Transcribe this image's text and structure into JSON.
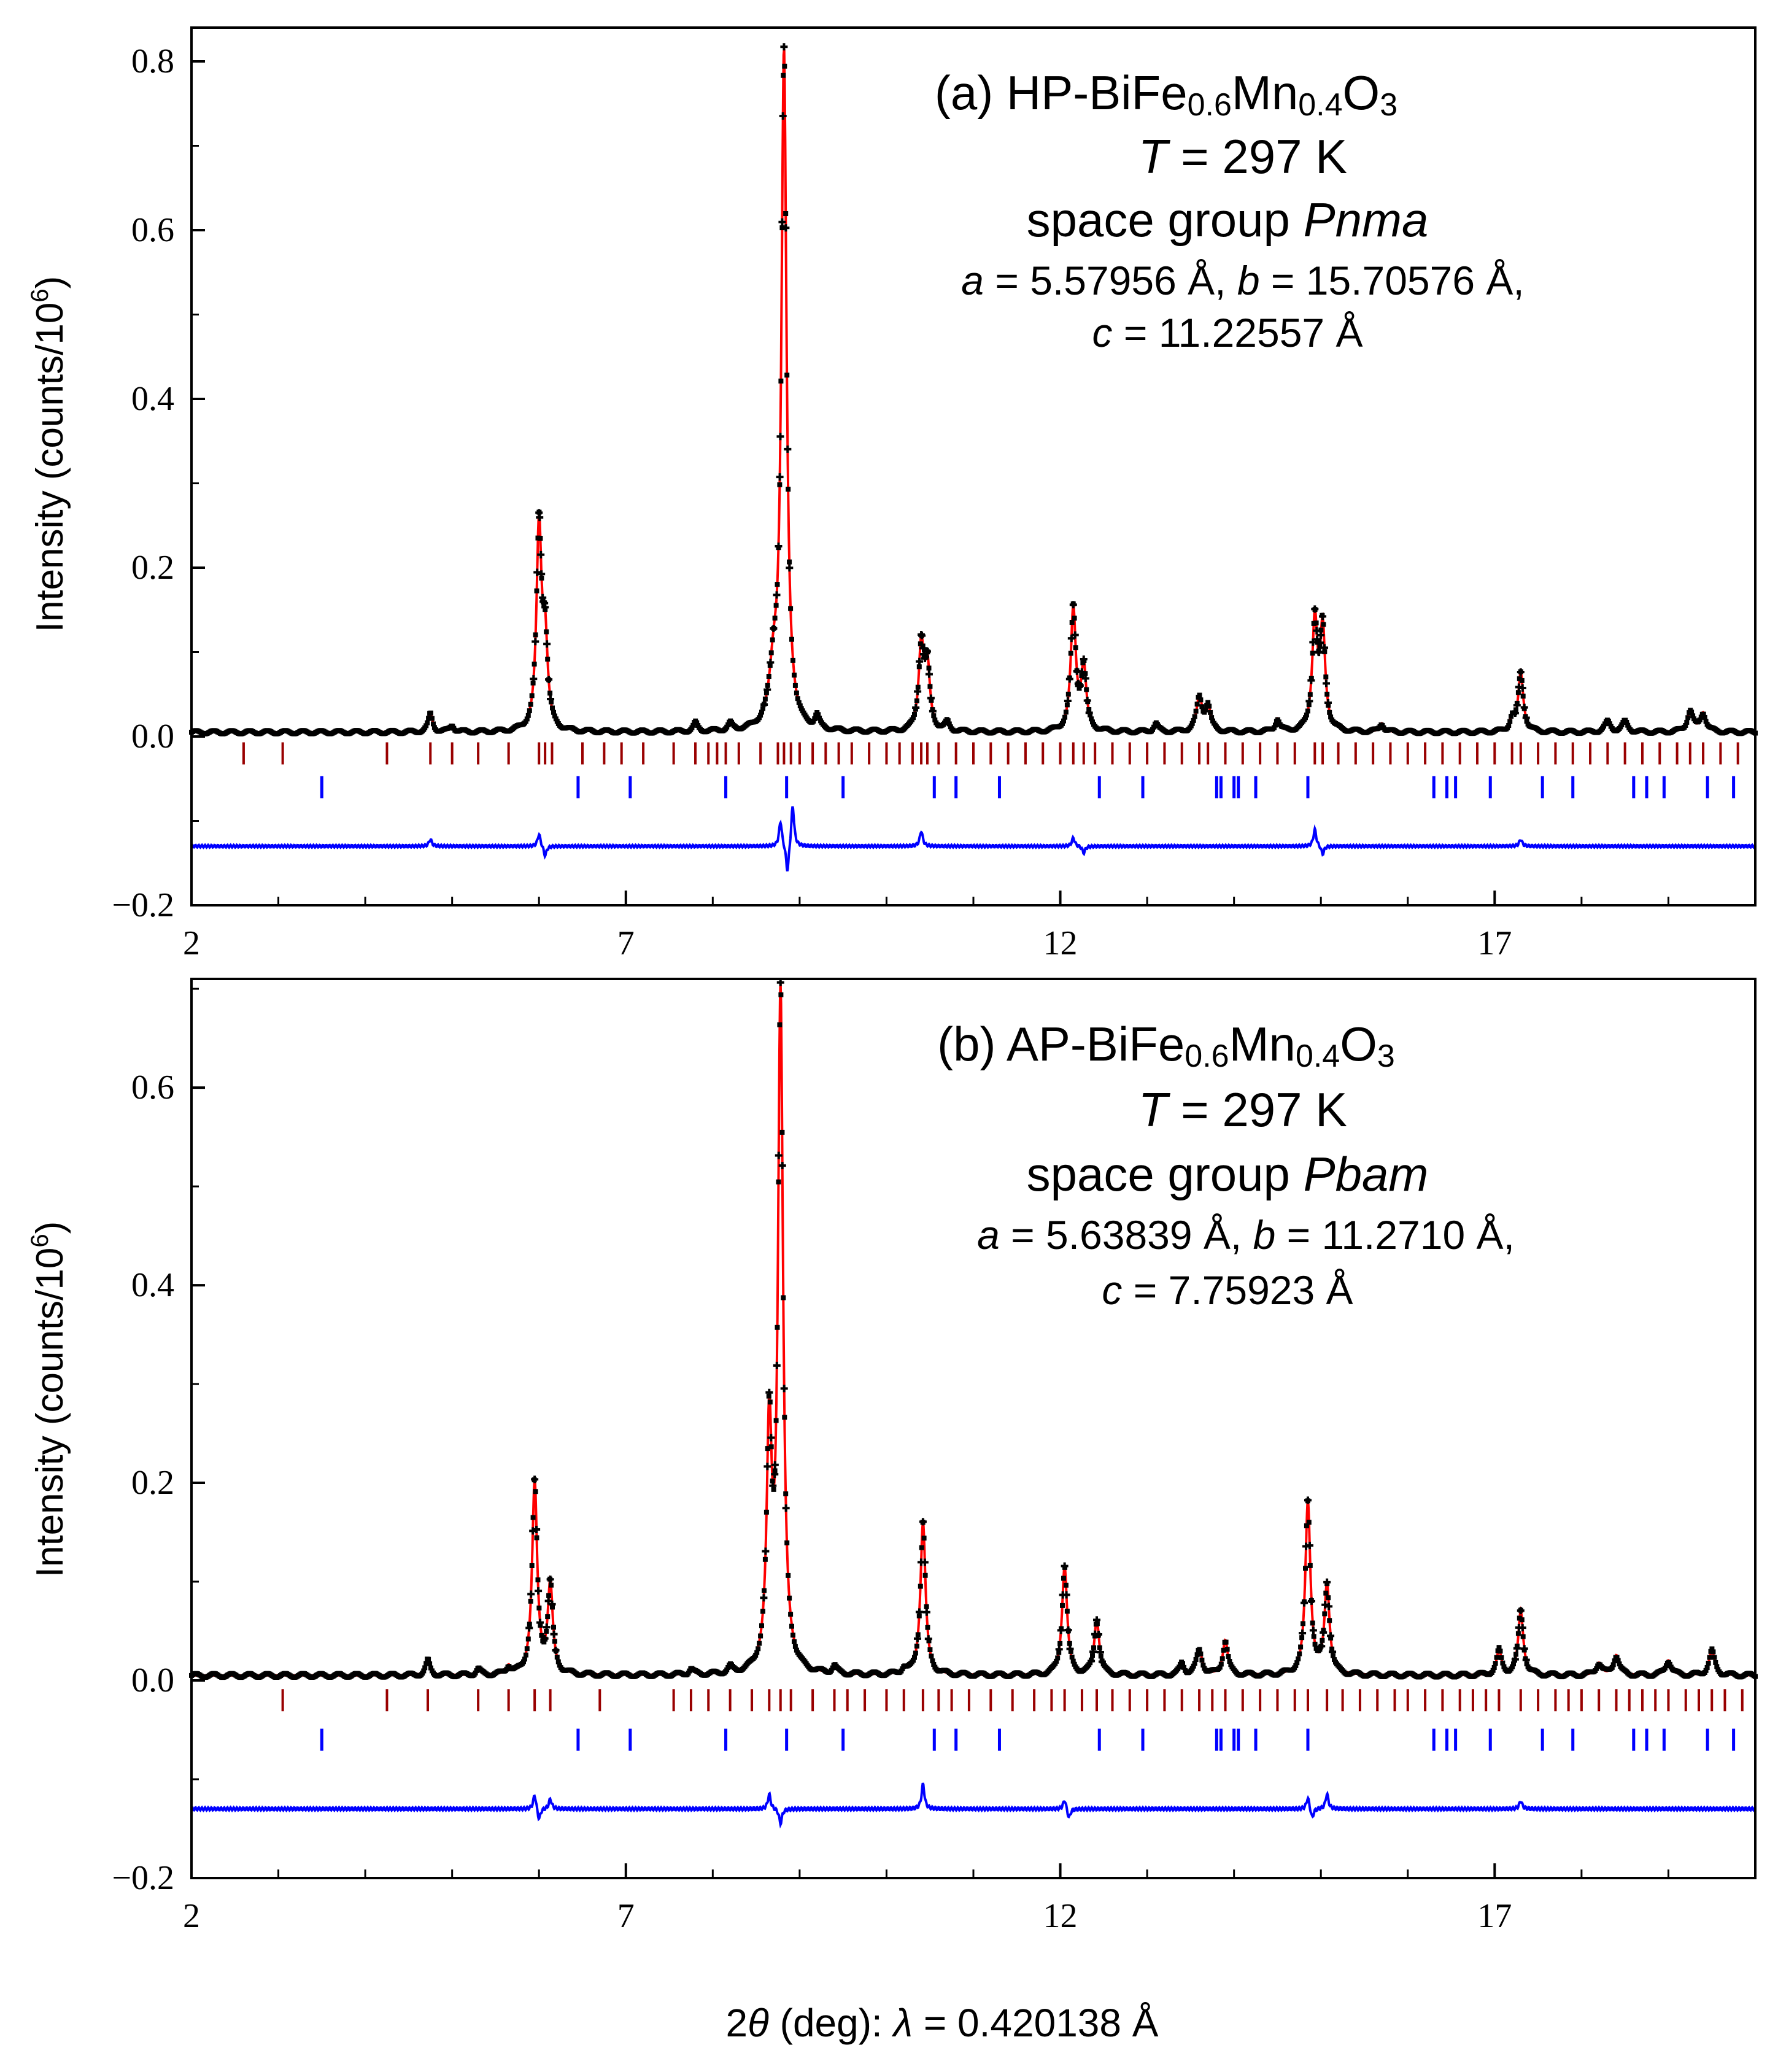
{
  "figure": {
    "xlabel_prefix": "2",
    "xlabel_theta": "θ",
    "xlabel_mid": " (deg): ",
    "xlabel_lambda": "λ",
    "xlabel_value": " = 0.420138 Å"
  },
  "colors": {
    "observed": "#000000",
    "calculated": "#ff0000",
    "difference": "#0000ff",
    "main_phase_ticks": "#990000",
    "impurity_ticks": "#0000ff"
  },
  "chart_data": [
    {
      "type": "line",
      "panel": "a",
      "title_prefix": "(a) HP-BiFe",
      "sub1": "0.6",
      "title_mid": "Mn",
      "sub2": "0.4",
      "title_end": "O",
      "sub3": "3",
      "temperature_var": "T",
      "temperature": " = 297 K",
      "space_group_prefix": "space group ",
      "space_group": "Pnma",
      "lattice": {
        "a_var": "a",
        "a": " = 5.57956 Å, ",
        "b_var": "b",
        "b": " = 15.70576 Å,",
        "c_var": "c",
        "c": " = 11.22557 Å"
      },
      "ylabel_text": "Intensity (counts/10",
      "ylabel_sup": "6",
      "ylabel_close": ")",
      "xlim": [
        2,
        20
      ],
      "ylim": [
        -0.2,
        0.84
      ],
      "xticks": [
        2,
        7,
        12,
        17
      ],
      "xtick_labels": [
        "2",
        "7",
        "12",
        "17"
      ],
      "yticks": [
        -0.2,
        0.0,
        0.2,
        0.4,
        0.6,
        0.8
      ],
      "ytick_labels": [
        "−0.2",
        "0.0",
        "0.2",
        "0.4",
        "0.6",
        "0.8"
      ],
      "background": 0.005,
      "difference_offset": -0.13,
      "main_tick_y": -0.02,
      "impurity_tick_y": -0.06,
      "peaks": [
        {
          "x": 4.75,
          "h": 0.022,
          "w": 0.03
        },
        {
          "x": 5.0,
          "h": 0.008,
          "w": 0.03
        },
        {
          "x": 6.0,
          "h": 0.24,
          "w": 0.035
        },
        {
          "x": 6.07,
          "h": 0.1,
          "w": 0.035
        },
        {
          "x": 7.8,
          "h": 0.01,
          "w": 0.03
        },
        {
          "x": 8.2,
          "h": 0.008,
          "w": 0.03
        },
        {
          "x": 8.7,
          "h": 0.06,
          "w": 0.06
        },
        {
          "x": 8.82,
          "h": 0.8,
          "w": 0.035
        },
        {
          "x": 9.2,
          "h": 0.015,
          "w": 0.03
        },
        {
          "x": 10.4,
          "h": 0.1,
          "w": 0.035
        },
        {
          "x": 10.47,
          "h": 0.075,
          "w": 0.035
        },
        {
          "x": 10.7,
          "h": 0.01,
          "w": 0.03
        },
        {
          "x": 12.15,
          "h": 0.145,
          "w": 0.035
        },
        {
          "x": 12.27,
          "h": 0.075,
          "w": 0.035
        },
        {
          "x": 13.1,
          "h": 0.01,
          "w": 0.03
        },
        {
          "x": 13.6,
          "h": 0.04,
          "w": 0.04
        },
        {
          "x": 13.7,
          "h": 0.03,
          "w": 0.035
        },
        {
          "x": 14.5,
          "h": 0.015,
          "w": 0.03
        },
        {
          "x": 14.93,
          "h": 0.13,
          "w": 0.035
        },
        {
          "x": 15.02,
          "h": 0.12,
          "w": 0.035
        },
        {
          "x": 15.7,
          "h": 0.01,
          "w": 0.03
        },
        {
          "x": 17.3,
          "h": 0.07,
          "w": 0.035
        },
        {
          "x": 17.2,
          "h": 0.015,
          "w": 0.03
        },
        {
          "x": 18.3,
          "h": 0.012,
          "w": 0.04
        },
        {
          "x": 18.5,
          "h": 0.012,
          "w": 0.04
        },
        {
          "x": 19.25,
          "h": 0.025,
          "w": 0.04
        },
        {
          "x": 19.4,
          "h": 0.022,
          "w": 0.04
        }
      ],
      "main_ticks": [
        2.6,
        3.05,
        4.25,
        4.75,
        5.0,
        5.3,
        5.65,
        6.0,
        6.07,
        6.15,
        6.5,
        6.75,
        6.95,
        7.2,
        7.55,
        7.8,
        7.95,
        8.05,
        8.15,
        8.3,
        8.55,
        8.75,
        8.82,
        8.9,
        9.0,
        9.15,
        9.3,
        9.45,
        9.6,
        9.8,
        10.0,
        10.15,
        10.3,
        10.4,
        10.47,
        10.6,
        10.8,
        11.0,
        11.2,
        11.4,
        11.6,
        11.8,
        12.0,
        12.15,
        12.27,
        12.4,
        12.6,
        12.8,
        13.0,
        13.2,
        13.4,
        13.6,
        13.7,
        13.9,
        14.1,
        14.3,
        14.5,
        14.7,
        14.93,
        15.02,
        15.2,
        15.4,
        15.6,
        15.8,
        16.0,
        16.2,
        16.4,
        16.6,
        16.8,
        17.0,
        17.2,
        17.3,
        17.5,
        17.7,
        17.9,
        18.1,
        18.3,
        18.5,
        18.7,
        18.9,
        19.1,
        19.25,
        19.4,
        19.6,
        19.8
      ],
      "impurity_ticks": [
        3.5,
        6.45,
        7.05,
        8.15,
        8.85,
        9.5,
        10.55,
        10.8,
        11.3,
        12.45,
        12.95,
        13.8,
        13.85,
        14.0,
        14.05,
        14.25,
        14.85,
        16.3,
        16.45,
        16.55,
        16.95,
        17.55,
        17.9,
        18.6,
        18.75,
        18.95,
        19.45,
        19.75
      ],
      "difference_spikes": [
        {
          "x": 4.75,
          "a": 0.008
        },
        {
          "x": 6.0,
          "a": 0.015
        },
        {
          "x": 6.07,
          "a": -0.012
        },
        {
          "x": 8.78,
          "a": 0.03
        },
        {
          "x": 8.86,
          "a": -0.035
        },
        {
          "x": 8.92,
          "a": 0.05
        },
        {
          "x": 10.4,
          "a": 0.018
        },
        {
          "x": 12.15,
          "a": 0.01
        },
        {
          "x": 12.27,
          "a": -0.008
        },
        {
          "x": 14.93,
          "a": 0.02
        },
        {
          "x": 15.02,
          "a": -0.01
        },
        {
          "x": 17.3,
          "a": 0.008
        }
      ]
    },
    {
      "type": "line",
      "panel": "b",
      "title_prefix": "(b) AP-BiFe",
      "sub1": "0.6",
      "title_mid": "Mn",
      "sub2": "0.4",
      "title_end": "O",
      "sub3": "3",
      "temperature_var": "T",
      "temperature": " = 297 K",
      "space_group_prefix": "space group ",
      "space_group": "Pbam",
      "lattice": {
        "a_var": "a",
        "a": " = 5.63839 Å, ",
        "b_var": "b",
        "b": " = 11.2710 Å,",
        "c_var": "c",
        "c": " = 7.75923 Å"
      },
      "ylabel_text": "Intensity (counts/10",
      "ylabel_sup": "6",
      "ylabel_close": ")",
      "xlim": [
        2,
        20
      ],
      "ylim": [
        -0.2,
        0.71
      ],
      "xticks": [
        2,
        7,
        12,
        17
      ],
      "xtick_labels": [
        "2",
        "7",
        "12",
        "17"
      ],
      "yticks": [
        -0.2,
        0.0,
        0.2,
        0.4,
        0.6
      ],
      "ytick_labels": [
        "−0.2",
        "0.0",
        "0.2",
        "0.4",
        "0.6"
      ],
      "background": 0.005,
      "difference_offset": -0.13,
      "main_tick_y": -0.02,
      "impurity_tick_y": -0.06,
      "peaks": [
        {
          "x": 4.72,
          "h": 0.015,
          "w": 0.03
        },
        {
          "x": 5.3,
          "h": 0.006,
          "w": 0.03
        },
        {
          "x": 5.65,
          "h": 0.008,
          "w": 0.03
        },
        {
          "x": 5.95,
          "h": 0.195,
          "w": 0.035
        },
        {
          "x": 6.13,
          "h": 0.09,
          "w": 0.035
        },
        {
          "x": 7.75,
          "h": 0.006,
          "w": 0.03
        },
        {
          "x": 8.2,
          "h": 0.006,
          "w": 0.03
        },
        {
          "x": 8.65,
          "h": 0.24,
          "w": 0.035
        },
        {
          "x": 8.78,
          "h": 0.685,
          "w": 0.035
        },
        {
          "x": 9.4,
          "h": 0.008,
          "w": 0.03
        },
        {
          "x": 10.2,
          "h": 0.006,
          "w": 0.03
        },
        {
          "x": 10.42,
          "h": 0.155,
          "w": 0.035
        },
        {
          "x": 12.05,
          "h": 0.11,
          "w": 0.035
        },
        {
          "x": 12.42,
          "h": 0.055,
          "w": 0.035
        },
        {
          "x": 13.4,
          "h": 0.012,
          "w": 0.03
        },
        {
          "x": 13.6,
          "h": 0.025,
          "w": 0.04
        },
        {
          "x": 13.9,
          "h": 0.035,
          "w": 0.035
        },
        {
          "x": 14.85,
          "h": 0.175,
          "w": 0.035
        },
        {
          "x": 15.07,
          "h": 0.09,
          "w": 0.035
        },
        {
          "x": 17.05,
          "h": 0.025,
          "w": 0.035
        },
        {
          "x": 17.3,
          "h": 0.065,
          "w": 0.035
        },
        {
          "x": 18.2,
          "h": 0.012,
          "w": 0.04
        },
        {
          "x": 18.4,
          "h": 0.02,
          "w": 0.04
        },
        {
          "x": 19.0,
          "h": 0.015,
          "w": 0.04
        },
        {
          "x": 19.5,
          "h": 0.025,
          "w": 0.04
        }
      ],
      "main_ticks": [
        3.05,
        4.25,
        4.72,
        5.3,
        5.65,
        5.95,
        6.13,
        6.7,
        7.55,
        7.75,
        7.95,
        8.2,
        8.45,
        8.65,
        8.78,
        8.9,
        9.15,
        9.4,
        9.55,
        9.75,
        10.0,
        10.2,
        10.42,
        10.6,
        10.75,
        10.95,
        11.2,
        11.45,
        11.7,
        11.9,
        12.05,
        12.25,
        12.42,
        12.6,
        12.8,
        13.0,
        13.2,
        13.4,
        13.6,
        13.75,
        13.9,
        14.1,
        14.3,
        14.5,
        14.7,
        14.85,
        15.07,
        15.25,
        15.45,
        15.65,
        15.85,
        16.0,
        16.2,
        16.4,
        16.6,
        16.75,
        16.9,
        17.05,
        17.3,
        17.5,
        17.7,
        17.85,
        18.0,
        18.2,
        18.4,
        18.55,
        18.7,
        18.85,
        19.0,
        19.2,
        19.35,
        19.5,
        19.65,
        19.85
      ],
      "impurity_ticks": [
        3.5,
        6.45,
        7.05,
        8.15,
        8.85,
        9.5,
        10.55,
        10.8,
        11.3,
        12.45,
        12.95,
        13.8,
        13.85,
        14.0,
        14.05,
        14.25,
        14.85,
        16.3,
        16.45,
        16.55,
        16.95,
        17.55,
        17.9,
        18.6,
        18.75,
        18.95,
        19.45,
        19.75
      ],
      "difference_spikes": [
        {
          "x": 5.95,
          "a": 0.015
        },
        {
          "x": 6.0,
          "a": -0.012
        },
        {
          "x": 6.13,
          "a": 0.01
        },
        {
          "x": 8.65,
          "a": 0.015
        },
        {
          "x": 8.78,
          "a": -0.015
        },
        {
          "x": 10.42,
          "a": 0.025
        },
        {
          "x": 12.05,
          "a": 0.01
        },
        {
          "x": 12.1,
          "a": -0.01
        },
        {
          "x": 14.85,
          "a": 0.012
        },
        {
          "x": 14.9,
          "a": -0.01
        },
        {
          "x": 15.07,
          "a": 0.015
        },
        {
          "x": 17.3,
          "a": 0.008
        }
      ]
    }
  ]
}
